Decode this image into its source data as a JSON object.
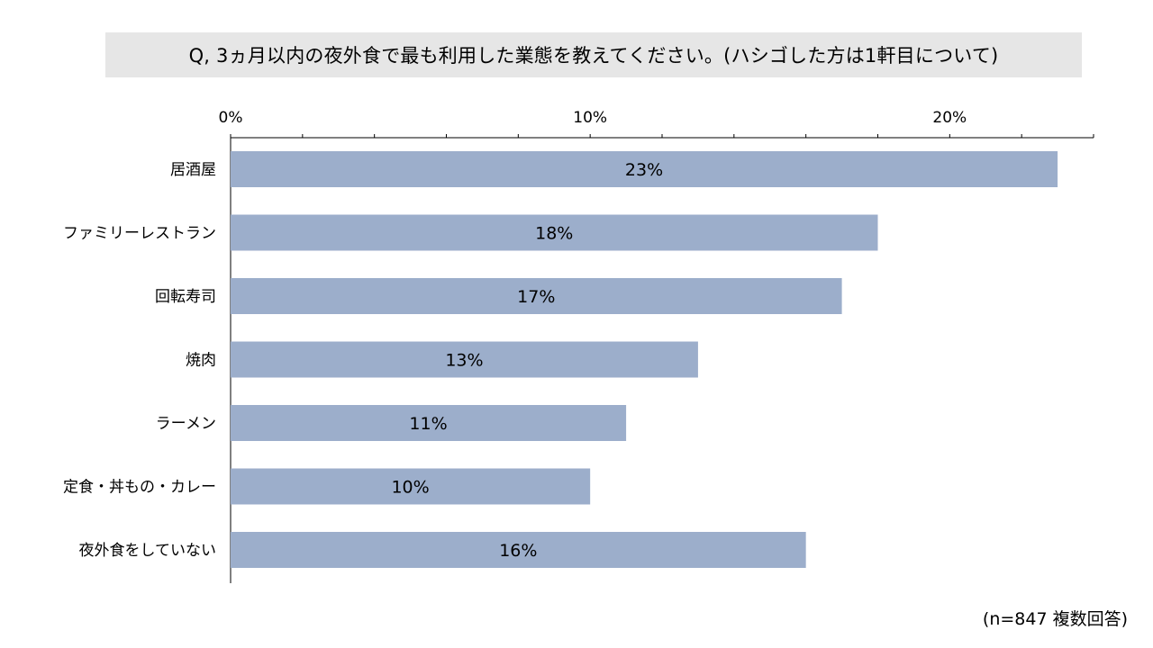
{
  "title": "Q, 3ヵ月以内の夜外食で最も利用した業態を教えてください。(ハシゴした方は1軒目について)",
  "footnote": "(n=847 複数回答)",
  "colors": {
    "bar": "#9caecb",
    "title_bg": "#e6e6e6",
    "axis": "#000000"
  },
  "chart_data": {
    "type": "bar",
    "orientation": "horizontal",
    "categories": [
      "居酒屋",
      "ファミリーレストラン",
      "回転寿司",
      "焼肉",
      "ラーメン",
      "定食・丼もの・カレー",
      "夜外食をしていない"
    ],
    "values": [
      23,
      18,
      17,
      13,
      11,
      10,
      16
    ],
    "value_labels": [
      "23%",
      "18%",
      "17%",
      "13%",
      "11%",
      "10%",
      "16%"
    ],
    "x_ticks": [
      0,
      10,
      20
    ],
    "x_tick_labels": [
      "0%",
      "10%",
      "20%"
    ],
    "xlim": [
      0,
      24
    ],
    "axis_position": "top",
    "grid": false
  }
}
